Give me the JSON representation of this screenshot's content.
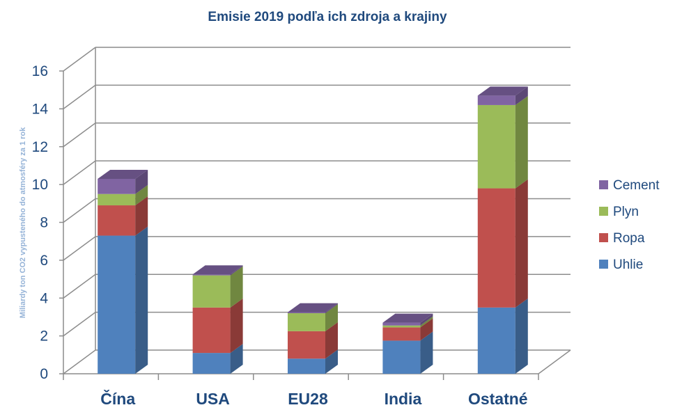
{
  "chart_data": {
    "type": "bar",
    "stacked": true,
    "title": "Emisie 2019 podľa ich zdroja a krajiny",
    "ylabel": "Miliardy ton CO2 vypusteného do atmosféry za 1 rok",
    "xlabel": "",
    "categories": [
      "Čína",
      "USA",
      "EU28",
      "India",
      "Ostatné"
    ],
    "ylim": [
      0,
      16
    ],
    "yticks": [
      0,
      2,
      4,
      6,
      8,
      10,
      12,
      14,
      16
    ],
    "grid": true,
    "legend": "right",
    "series": [
      {
        "name": "Uhlie",
        "color": "#4f81bd",
        "values": [
          7.3,
          1.1,
          0.8,
          1.75,
          3.5
        ]
      },
      {
        "name": "Ropa",
        "color": "#c0504d",
        "values": [
          1.6,
          2.4,
          1.45,
          0.7,
          6.3
        ]
      },
      {
        "name": "Plyn",
        "color": "#9bbb59",
        "values": [
          0.6,
          1.7,
          0.95,
          0.1,
          4.4
        ]
      },
      {
        "name": "Cement",
        "color": "#8064a2",
        "values": [
          0.8,
          0.05,
          0.05,
          0.15,
          0.5
        ]
      }
    ]
  }
}
